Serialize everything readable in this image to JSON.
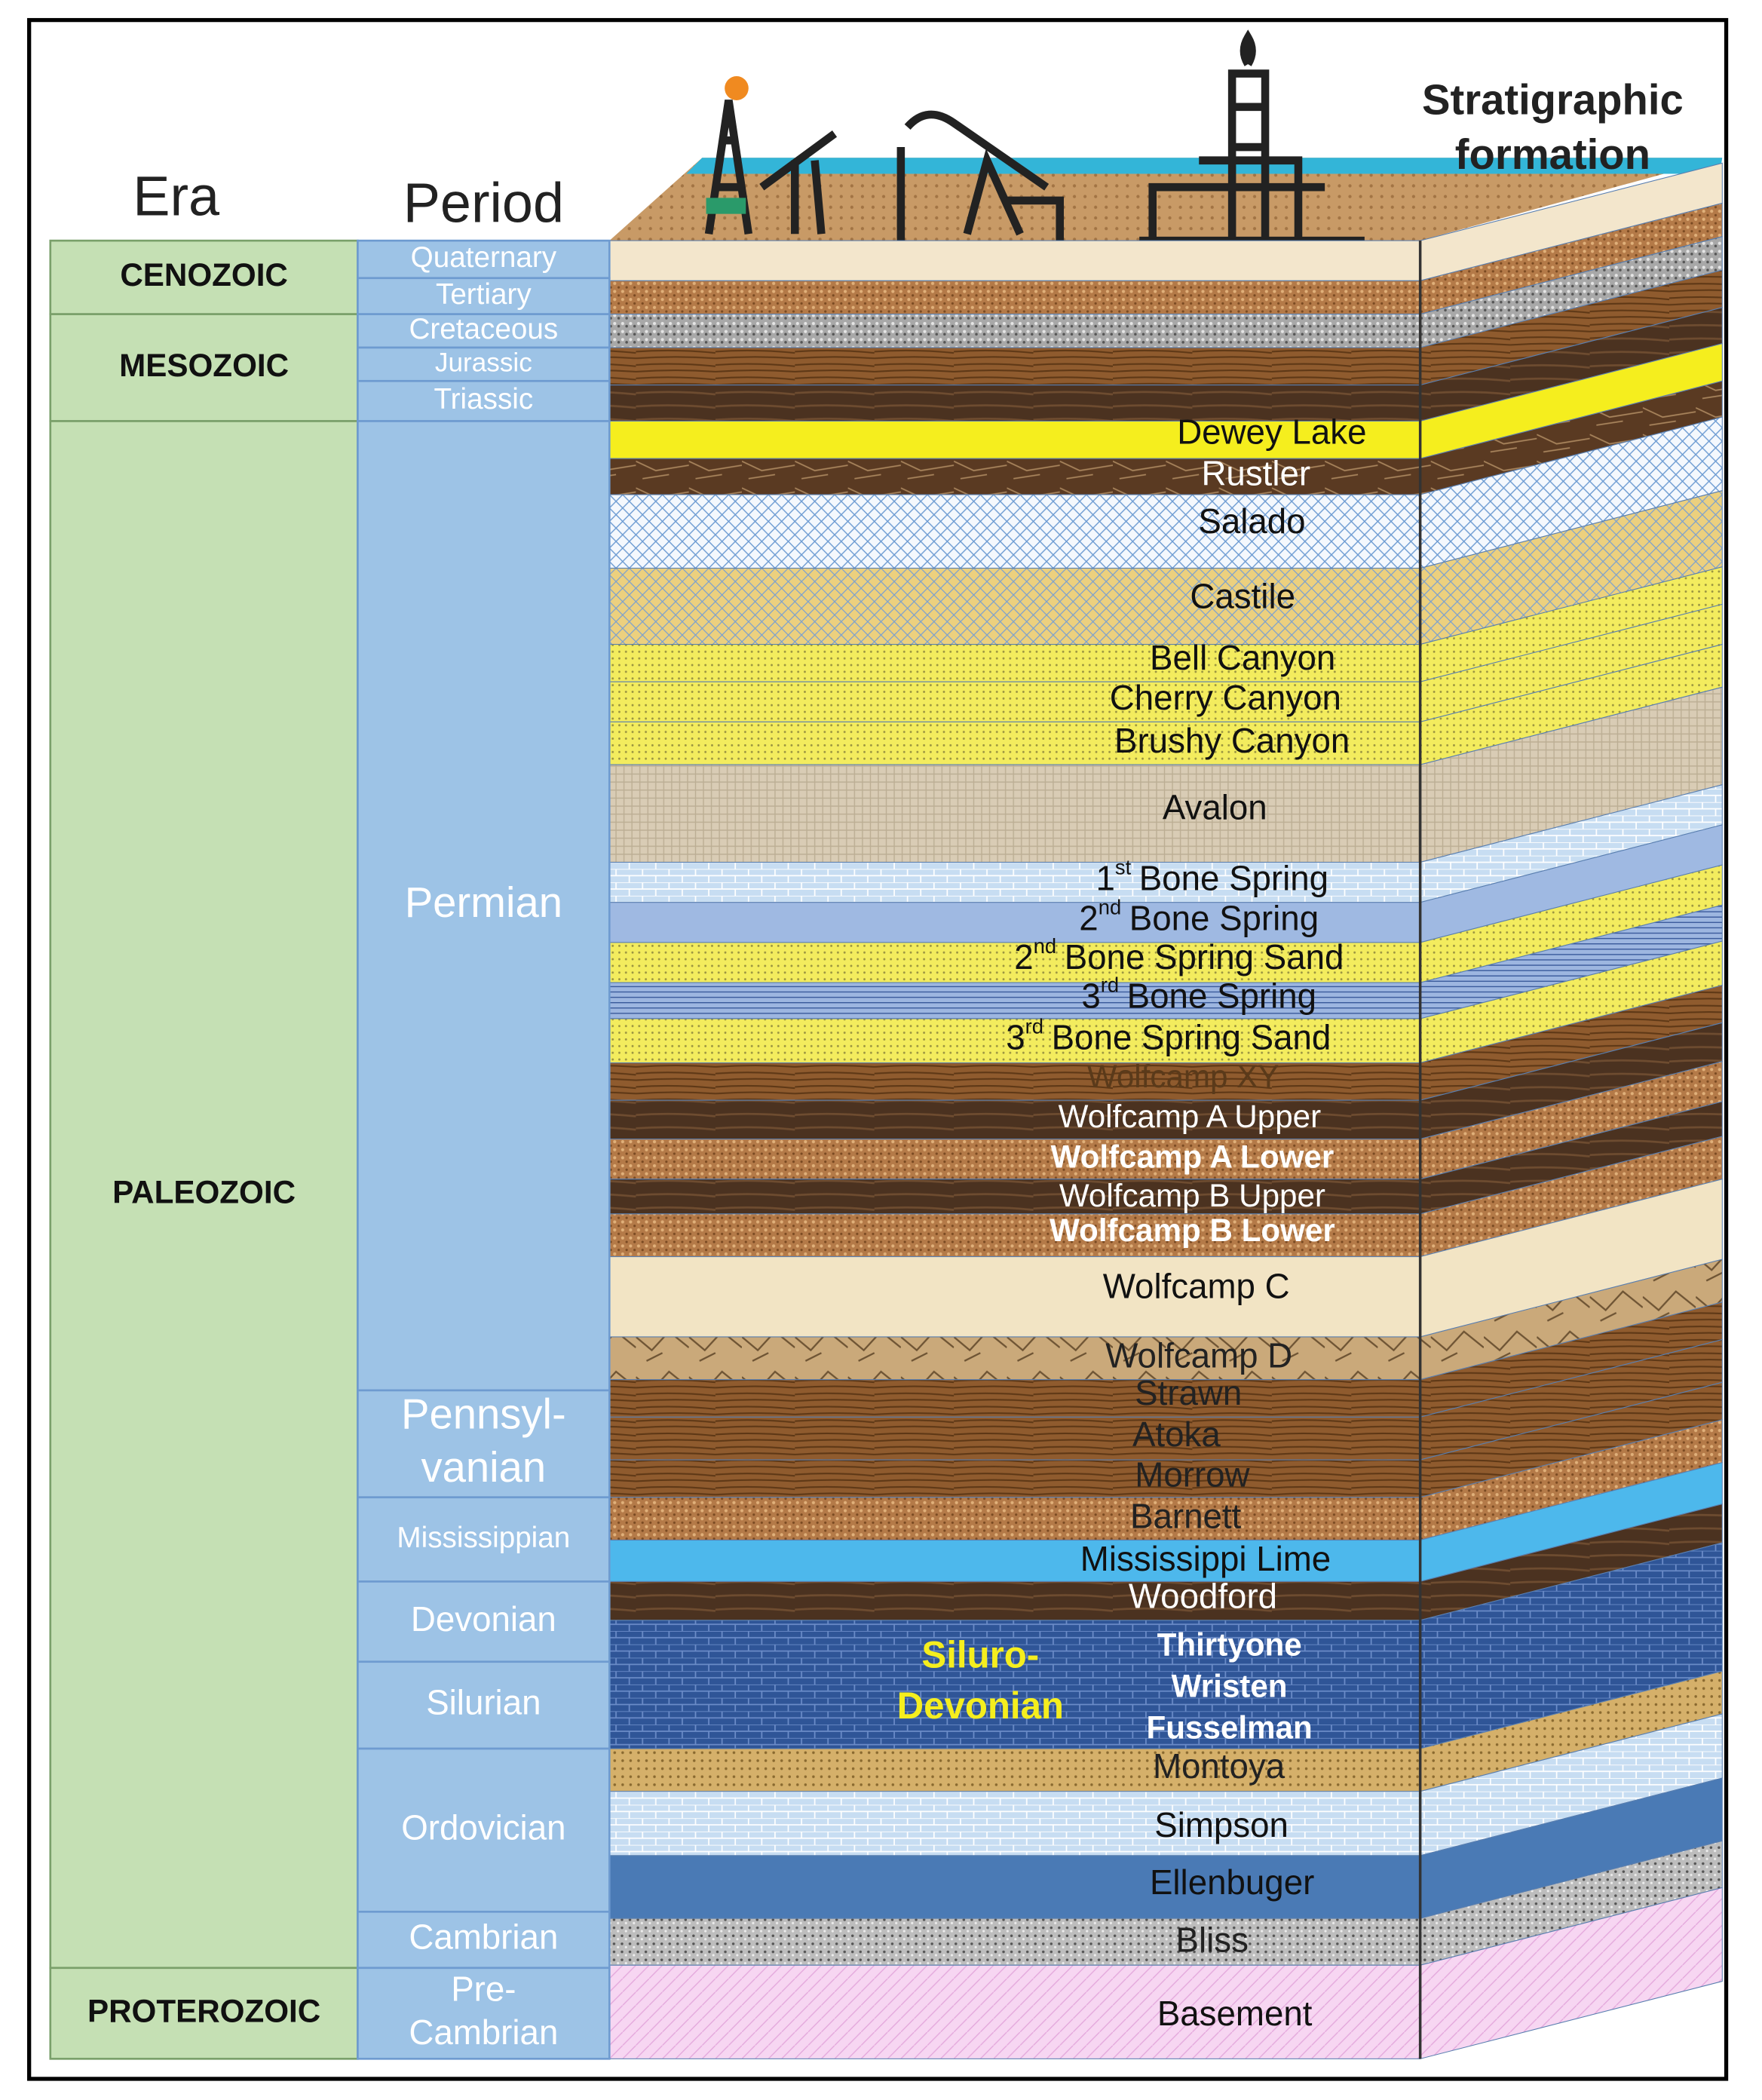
{
  "header": {
    "era": "Era",
    "period": "Period",
    "formation": [
      "Stratigraphic",
      "formation"
    ]
  },
  "eras": [
    "CENOZOIC",
    "MESOZOIC",
    "PALEOZOIC",
    "PROTEROZOIC"
  ],
  "periods": [
    [
      "Quaternary"
    ],
    [
      "Tertiary"
    ],
    [
      "Cretaceous"
    ],
    [
      "Jurassic"
    ],
    [
      "Triassic"
    ],
    [
      "Permian"
    ],
    [
      "Pennsyl-",
      "vanian"
    ],
    [
      "Mississippian"
    ],
    [
      "Devonian"
    ],
    [
      "Silurian"
    ],
    [
      "Ordovician"
    ],
    [
      "Cambrian"
    ],
    [
      "Pre-",
      "Cambrian"
    ]
  ],
  "formations": [
    "Dewey Lake",
    "Rustler",
    "Salado",
    "Castile",
    "Bell Canyon",
    "Cherry Canyon",
    "Brushy Canyon",
    "Avalon",
    {
      "num": "1",
      "sup": "st",
      "rest": "Bone Spring"
    },
    {
      "num": "2",
      "sup": "nd",
      "rest": "Bone Spring"
    },
    {
      "num": "2",
      "sup": "nd",
      "rest": "Bone Spring Sand"
    },
    {
      "num": "3",
      "sup": "rd",
      "rest": "Bone Spring"
    },
    {
      "num": "3",
      "sup": "rd",
      "rest": "Bone Spring Sand"
    },
    "Wolfcamp XY",
    "Wolfcamp A Upper",
    "Wolfcamp A Lower",
    "Wolfcamp B Upper",
    "Wolfcamp B Lower",
    "Wolfcamp C",
    "Wolfcamp D",
    "Strawn",
    "Atoka",
    "Morrow",
    "Barnett",
    "Mississippi Lime",
    "Woodford",
    "Thirtyone",
    "Wristen",
    "Fusselman",
    "Montoya",
    "Simpson",
    "Ellenbuger",
    "Bliss",
    "Basement"
  ],
  "group_label": [
    "Siluro-",
    "Devonian"
  ]
}
